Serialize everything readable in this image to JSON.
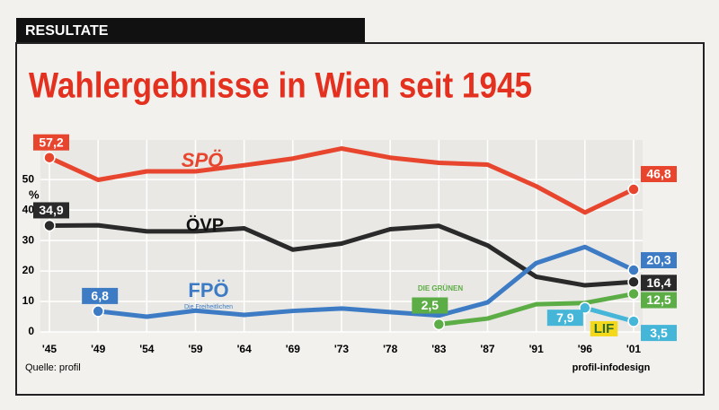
{
  "header": "RESULTATE",
  "chart_data": {
    "type": "line",
    "title": "Wahlergebnisse in Wien seit 1945",
    "y_unit": "%",
    "categories": [
      "'45",
      "'49",
      "'54",
      "'59",
      "'64",
      "'69",
      "'73",
      "'78",
      "'83",
      "'87",
      "'91",
      "'96",
      "'01"
    ],
    "series": [
      {
        "name": "SPÖ",
        "color": "#e8452e",
        "values": [
          57.2,
          49.9,
          52.7,
          52.7,
          54.7,
          56.9,
          60.2,
          57.2,
          55.5,
          54.9,
          47.8,
          39.2,
          46.8
        ],
        "value_labels": [
          "57,2",
          null,
          null,
          null,
          null,
          null,
          null,
          null,
          null,
          null,
          null,
          null,
          "46,8"
        ]
      },
      {
        "name": "ÖVP",
        "color": "#2a2a2a",
        "values": [
          34.9,
          35.0,
          33.0,
          33.0,
          34.0,
          27.0,
          29.0,
          33.7,
          34.8,
          28.4,
          18.1,
          15.3,
          16.4
        ],
        "value_labels": [
          "34,9",
          null,
          null,
          null,
          null,
          null,
          null,
          null,
          null,
          null,
          null,
          null,
          "16,4"
        ]
      },
      {
        "name": "FPÖ",
        "color": "#3d7cc4",
        "values": [
          null,
          6.8,
          5.0,
          7.0,
          5.6,
          6.9,
          7.7,
          6.5,
          5.4,
          9.7,
          22.6,
          27.9,
          20.3
        ],
        "value_labels": [
          null,
          "6,8",
          null,
          null,
          null,
          null,
          null,
          null,
          null,
          null,
          null,
          null,
          "20,3"
        ]
      },
      {
        "name": "DIE GRÜNEN",
        "color": "#5cad45",
        "values": [
          null,
          null,
          null,
          null,
          null,
          null,
          null,
          null,
          2.5,
          4.4,
          9.1,
          9.5,
          12.5
        ],
        "value_labels": [
          null,
          null,
          null,
          null,
          null,
          null,
          null,
          null,
          "2,5",
          null,
          null,
          null,
          "12,5"
        ]
      },
      {
        "name": "LIF",
        "color": "#45b6d8",
        "values": [
          null,
          null,
          null,
          null,
          null,
          null,
          null,
          null,
          null,
          null,
          null,
          7.9,
          3.5
        ],
        "value_labels": [
          null,
          null,
          null,
          null,
          null,
          null,
          null,
          null,
          null,
          null,
          null,
          "7,9",
          "3,5"
        ]
      }
    ],
    "ylim": [
      0,
      63
    ],
    "yticks": [
      0,
      10,
      20,
      30,
      40,
      50
    ],
    "grid": true,
    "annotations": [
      "Die Freiheitlichen"
    ],
    "source": "Quelle: profil",
    "credit": "profil-infodesign"
  }
}
